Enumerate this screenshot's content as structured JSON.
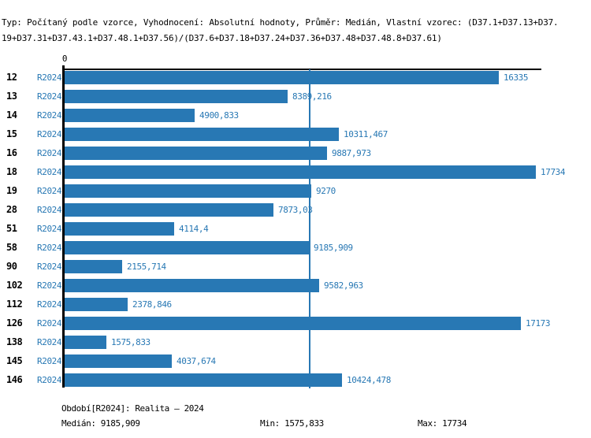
{
  "header": {
    "line1": "Typ: Počítaný podle vzorce, Vyhodnocení: Absolutní hodnoty, Průměr: Medián, Vlastní vzorec: (D37.1+D37.13+D37.",
    "line2": "19+D37.31+D37.43.1+D37.48.1+D37.56)/(D37.6+D37.18+D37.24+D37.36+D37.48+D37.48.8+D37.61)"
  },
  "axis": {
    "origin_label": "0"
  },
  "chart_data": {
    "type": "bar",
    "orientation": "horizontal",
    "title": "Typ: Počítaný podle vzorce, Vyhodnocení: Absolutní hodnoty, Průměr: Medián, Vlastní vzorec: (D37.1+D37.13+D37.19+D37.31+D37.43.1+D37.48.1+D37.56)/(D37.6+D37.18+D37.24+D37.36+D37.48+D37.48.8+D37.61)",
    "series_label": "R2024",
    "categories": [
      "12",
      "13",
      "14",
      "15",
      "16",
      "18",
      "19",
      "28",
      "51",
      "58",
      "90",
      "102",
      "112",
      "126",
      "138",
      "145",
      "146"
    ],
    "values": [
      16335,
      8389.216,
      4900.833,
      10311.467,
      9887.973,
      17734,
      9270,
      7873.03,
      4114.4,
      9185.909,
      2155.714,
      9582.963,
      2378.846,
      17173,
      1575.833,
      4037.674,
      10424.478
    ],
    "value_labels": [
      "16335",
      "8389,216",
      "4900,833",
      "10311,467",
      "9887,973",
      "17734",
      "9270",
      "7873,03",
      "4114,4",
      "9185,909",
      "2155,714",
      "9582,963",
      "2378,846",
      "17173",
      "1575,833",
      "4037,674",
      "10424,478"
    ],
    "xlim": [
      0,
      18030
    ],
    "xmax_bar": 17734,
    "median": 9185.909,
    "min": 1575.833,
    "max": 17734,
    "grid": false,
    "legend": "none",
    "bar_color": "#2878b4",
    "label_color": "#2878b4",
    "axis_color": "#000000"
  },
  "footer": {
    "period": "Období[R2024]: Realita – 2024",
    "median": "Medián: 9185,909",
    "min": "Min: 1575,833",
    "max": "Max: 17734"
  },
  "colors": {
    "accent_blue": "#2878b4",
    "text_black": "#000000",
    "background": "#ffffff"
  }
}
